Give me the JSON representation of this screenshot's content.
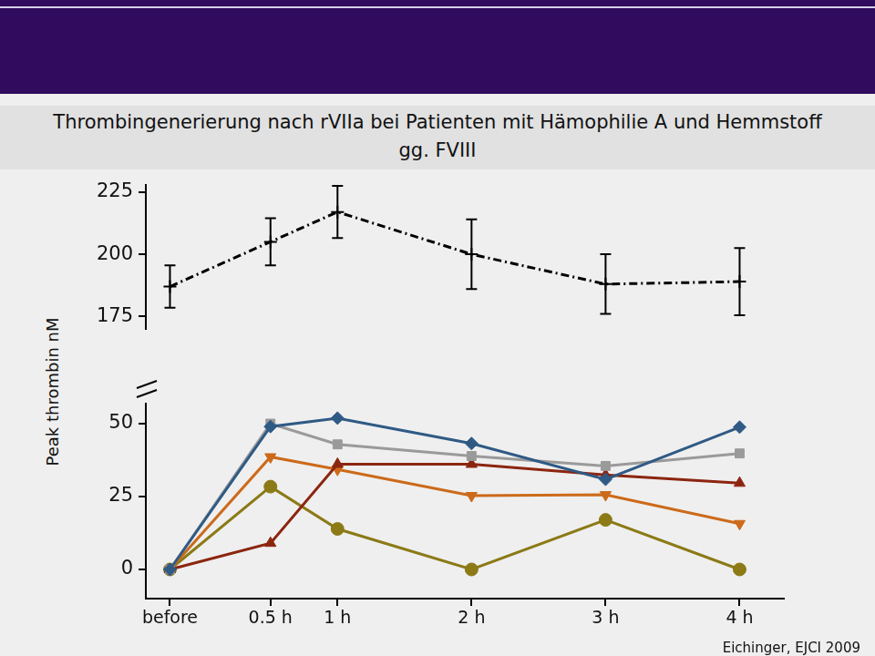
{
  "chart_data": [
    {
      "type": "line",
      "title": "Thrombingenerierung nach rVIIa bei Patienten mit Hämophilie A und Hemmstoff gg. FVIII",
      "y_label": "Peak thrombin nM",
      "x": [
        -0.25,
        0.5,
        1,
        2,
        3,
        4
      ],
      "xlim": [
        -0.43,
        4.33
      ],
      "ylim": [
        170,
        228
      ],
      "yticks": [
        175,
        200,
        225
      ],
      "tick_labels": "y",
      "series": [
        {
          "color": "#000000",
          "line_style": "dashdot",
          "marker": "cross",
          "values": [
            187,
            205,
            217,
            200,
            188,
            189
          ],
          "errors": [
            8.5,
            9.5,
            10.5,
            14,
            12,
            13.5
          ]
        }
      ]
    },
    {
      "type": "line",
      "x": [
        -0.25,
        0.5,
        1,
        2,
        3,
        4
      ],
      "xlim": [
        -0.43,
        4.33
      ],
      "xticks": [
        {
          "value": -0.25,
          "label": "before"
        },
        {
          "value": 0.5,
          "label": "0.5 h"
        },
        {
          "value": 1,
          "label": "1 h"
        },
        {
          "value": 2,
          "label": "2 h"
        },
        {
          "value": 3,
          "label": "3 h"
        },
        {
          "value": 4,
          "label": "4 h"
        }
      ],
      "ylim": [
        -10,
        57
      ],
      "yticks": [
        0,
        25,
        50
      ],
      "annotations": [
        "Eichinger, EJCI 2009"
      ],
      "series": [
        {
          "color": "#2f5a85",
          "line_style": "solid",
          "marker": "diamond",
          "values": [
            0,
            49,
            51.9,
            43.2,
            30.9,
            48.8
          ]
        },
        {
          "color": "#9a9a9a",
          "line_style": "solid",
          "marker": "square",
          "values": [
            0,
            50,
            42.9,
            38.9,
            35.5,
            39.8
          ]
        },
        {
          "color": "#8c2510",
          "line_style": "solid",
          "marker": "triangle",
          "values": [
            0,
            9,
            36.1,
            36.1,
            32.4,
            29.6
          ]
        },
        {
          "color": "#cc6a1a",
          "line_style": "solid",
          "marker": "triangle_down",
          "values": [
            0,
            38.6,
            34.3,
            25.3,
            25.6,
            15.7
          ]
        },
        {
          "color": "#8b7a16",
          "line_style": "solid",
          "marker": "circle",
          "values": [
            0,
            28.4,
            13.9,
            0,
            17,
            0
          ]
        }
      ]
    }
  ]
}
